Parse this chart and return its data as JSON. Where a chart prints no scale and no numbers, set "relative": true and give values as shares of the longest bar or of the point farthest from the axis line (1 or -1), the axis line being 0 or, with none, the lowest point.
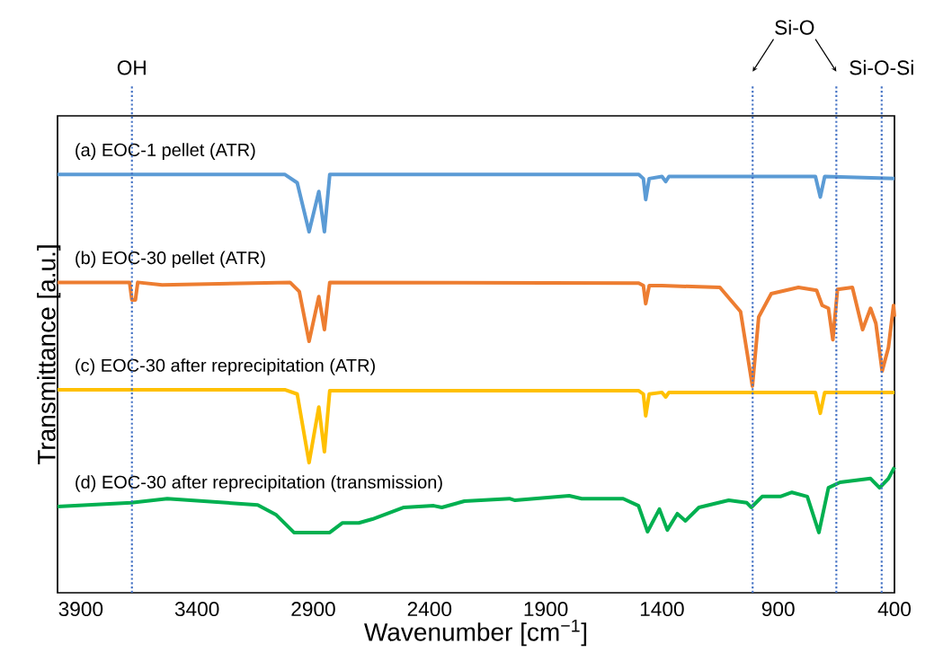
{
  "chart_data": {
    "type": "line",
    "relative": true,
    "xlabel": "Wavenumber [cm$^{−1}$]",
    "ylabel": "Transmittance [a.u.]",
    "xlim": [
      4000,
      400
    ],
    "xticks": [
      3900,
      3400,
      2900,
      2400,
      1900,
      1400,
      900,
      400
    ],
    "legend": false,
    "grid": false,
    "marker": "none",
    "line_style": "solid",
    "ref_lines": [
      {
        "axis": "x",
        "value": 3680,
        "label": "OH",
        "color": "#4472c4",
        "line_style": "dotted"
      },
      {
        "axis": "x",
        "value": 1010,
        "label": "Si-O",
        "color": "#4472c4",
        "line_style": "dotted"
      },
      {
        "axis": "x",
        "value": 650,
        "label": null,
        "color": "#4472c4",
        "line_style": "dotted"
      },
      {
        "axis": "x",
        "value": 455,
        "label": "Si-O-Si",
        "color": "#4472c4",
        "line_style": "dotted"
      }
    ],
    "series": [
      {
        "name": "(a) EOC-1 pellet (ATR)",
        "color": "#5b9bd5",
        "x": [
          4000,
          3023,
          2969,
          2918,
          2876,
          2852,
          2829,
          1500,
          1480,
          1470,
          1455,
          1400,
          1384,
          1370,
          740,
          719,
          700,
          400
        ],
        "values": [
          1.0,
          1.0,
          0.98,
          0.863,
          0.959,
          0.863,
          1.0,
          1.0,
          0.99,
          0.94,
          0.99,
          0.995,
          0.983,
          0.995,
          0.995,
          0.946,
          0.995,
          0.99
        ]
      },
      {
        "name": "(b) EOC-30 pellet (ATR)",
        "color": "#ed7d31",
        "x": [
          4000,
          3690,
          3680,
          3665,
          3655,
          3550,
          3000,
          2960,
          2918,
          2876,
          2852,
          2829,
          1500,
          1480,
          1470,
          1455,
          1400,
          1151,
          1062,
          1011,
          984,
          930,
          813,
          735,
          711,
          684,
          665,
          645,
          581,
          537,
          503,
          480,
          453,
          426,
          404,
          400
        ],
        "values": [
          0.742,
          0.742,
          0.7,
          0.7,
          0.742,
          0.736,
          0.742,
          0.72,
          0.601,
          0.708,
          0.629,
          0.742,
          0.74,
          0.734,
          0.691,
          0.734,
          0.734,
          0.73,
          0.672,
          0.494,
          0.659,
          0.715,
          0.73,
          0.723,
          0.687,
          0.68,
          0.605,
          0.725,
          0.73,
          0.629,
          0.68,
          0.644,
          0.53,
          0.586,
          0.687,
          0.66
        ]
      },
      {
        "name": "(c) EOC-30 after reprecipitation (ATR)",
        "color": "#ffc000",
        "x": [
          4000,
          3020,
          2969,
          2918,
          2876,
          2852,
          2829,
          1500,
          1480,
          1470,
          1455,
          1400,
          1384,
          1370,
          740,
          719,
          700,
          400
        ],
        "values": [
          0.485,
          0.485,
          0.475,
          0.311,
          0.444,
          0.337,
          0.483,
          0.483,
          0.475,
          0.423,
          0.475,
          0.479,
          0.468,
          0.479,
          0.479,
          0.429,
          0.479,
          0.479
        ]
      },
      {
        "name": "(d) EOC-30 after reprecipitation (transmission)",
        "color": "#00b050",
        "x": [
          4000,
          3683,
          3528,
          3139,
          3061,
          2983,
          2829,
          2774,
          2704,
          2646,
          2510,
          2382,
          2347,
          2250,
          2056,
          2032,
          1799,
          1745,
          1567,
          1501,
          1462,
          1411,
          1377,
          1334,
          1299,
          1241,
          1113,
          1035,
          1016,
          969,
          891,
          841,
          775,
          725,
          684,
          634,
          503,
          464,
          426,
          400
        ],
        "values": [
          0.206,
          0.215,
          0.225,
          0.21,
          0.187,
          0.144,
          0.144,
          0.167,
          0.167,
          0.176,
          0.204,
          0.208,
          0.204,
          0.219,
          0.225,
          0.221,
          0.232,
          0.225,
          0.225,
          0.208,
          0.146,
          0.2,
          0.15,
          0.189,
          0.172,
          0.204,
          0.221,
          0.215,
          0.204,
          0.23,
          0.23,
          0.24,
          0.23,
          0.144,
          0.251,
          0.264,
          0.273,
          0.251,
          0.273,
          0.3
        ]
      }
    ]
  }
}
